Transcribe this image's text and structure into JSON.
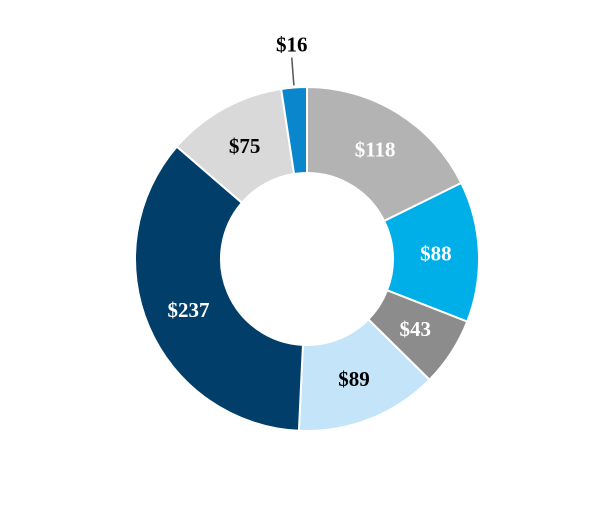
{
  "chart_data": {
    "type": "pie",
    "donut": true,
    "start_angle_deg": 0,
    "direction": "clockwise",
    "values": [
      118,
      88,
      43,
      89,
      237,
      75,
      16
    ],
    "labels": [
      "$118",
      "$88",
      "$43",
      "$89",
      "$237",
      "$75",
      "$16"
    ],
    "colors": [
      "#b3b3b3",
      "#00aee8",
      "#8c8c8c",
      "#c4e4fa",
      "#013e6a",
      "#d9d9d9",
      "#0a87cc"
    ],
    "label_colors": [
      "#ffffff",
      "#ffffff",
      "#ffffff",
      "#000000",
      "#ffffff",
      "#000000",
      "#000000"
    ],
    "title": "",
    "legend": "none"
  }
}
